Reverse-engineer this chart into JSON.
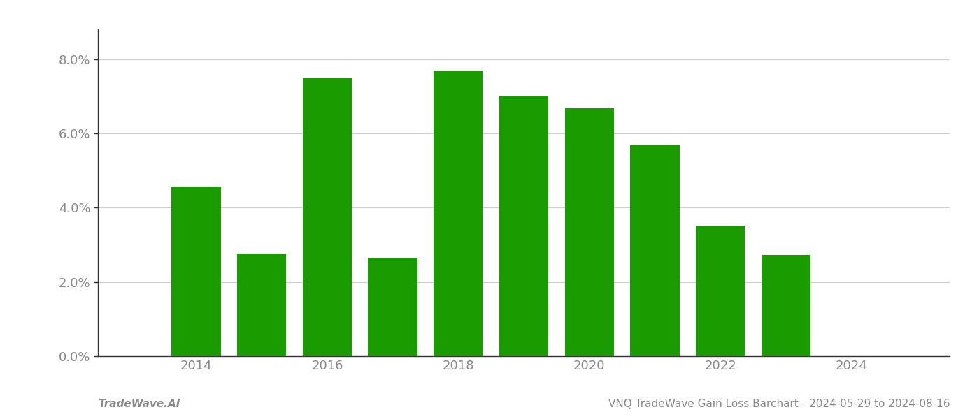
{
  "years": [
    2014,
    2015,
    2016,
    2017,
    2018,
    2019,
    2020,
    2021,
    2022,
    2023
  ],
  "values": [
    0.0455,
    0.0275,
    0.0748,
    0.0265,
    0.0768,
    0.0702,
    0.0668,
    0.0568,
    0.0352,
    0.0272
  ],
  "bar_color": "#1a9b00",
  "background_color": "#ffffff",
  "grid_color": "#cccccc",
  "axis_label_color": "#888888",
  "title_text": "VNQ TradeWave Gain Loss Barchart - 2024-05-29 to 2024-08-16",
  "watermark_text": "TradeWave.AI",
  "ylim_max": 0.088,
  "ytick_values": [
    0.0,
    0.02,
    0.04,
    0.06,
    0.08
  ],
  "ytick_labels": [
    "0.0%",
    "2.0%",
    "4.0%",
    "6.0%",
    "8.0%"
  ],
  "xlim_min": 2012.5,
  "xlim_max": 2025.5,
  "bar_width": 0.75,
  "title_fontsize": 11,
  "watermark_fontsize": 11,
  "tick_fontsize": 13,
  "axis_color": "#999999",
  "spine_color": "#333333"
}
